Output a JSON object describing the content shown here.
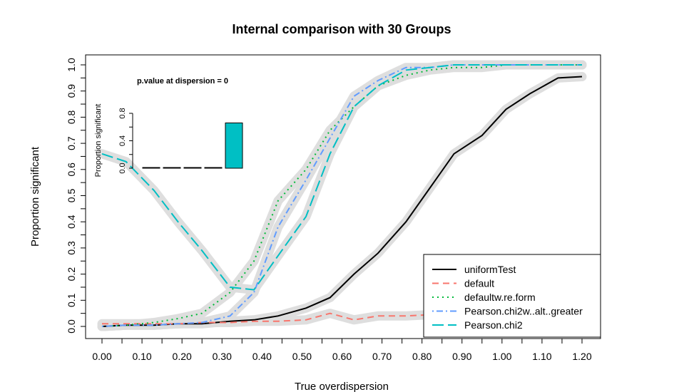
{
  "chart_data": {
    "type": "line",
    "title": "Internal comparison with 30 Groups",
    "xlabel": "True overdispersion",
    "ylabel": "Proportion significant",
    "xlim": [
      -0.03,
      1.23
    ],
    "ylim": [
      -0.04,
      1.04
    ],
    "x_ticks": [
      0.0,
      0.1,
      0.2,
      0.3,
      0.4,
      0.5,
      0.6,
      0.7,
      0.8,
      0.9,
      1.0,
      1.1,
      1.2
    ],
    "x_tick_labels": [
      "0.00",
      "0.10",
      "0.20",
      "0.30",
      "0.40",
      "0.50",
      "0.60",
      "0.70",
      "0.80",
      "0.90",
      "1.00",
      "1.10",
      "1.20"
    ],
    "y_ticks": [
      0.0,
      0.1,
      0.2,
      0.3,
      0.4,
      0.5,
      0.6,
      0.7,
      0.8,
      0.9,
      1.0
    ],
    "y_tick_labels": [
      "0.0",
      "0.1",
      "0.2",
      "0.3",
      "0.4",
      "0.5",
      "0.6",
      "0.7",
      "0.8",
      "0.9",
      "1.0"
    ],
    "grid": false,
    "legend_position": "bottom-right",
    "series": [
      {
        "name": "uniformTest",
        "color": "#000000",
        "dash": "solid",
        "x": [
          0.0,
          0.06,
          0.13,
          0.19,
          0.25,
          0.32,
          0.38,
          0.44,
          0.51,
          0.57,
          0.63,
          0.69,
          0.76,
          0.82,
          0.88,
          0.95,
          1.01,
          1.07,
          1.14,
          1.2
        ],
        "y": [
          0.0,
          0.005,
          0.005,
          0.01,
          0.01,
          0.02,
          0.025,
          0.04,
          0.07,
          0.11,
          0.2,
          0.28,
          0.4,
          0.53,
          0.66,
          0.73,
          0.83,
          0.89,
          0.95,
          0.955
        ]
      },
      {
        "name": "default",
        "color": "#f8766d",
        "dash": "dashed",
        "x": [
          0.0,
          0.06,
          0.13,
          0.19,
          0.25,
          0.32,
          0.38,
          0.44,
          0.51,
          0.57,
          0.63,
          0.69,
          0.76,
          0.82,
          0.88,
          0.95,
          1.01,
          1.07,
          1.14,
          1.2
        ],
        "y": [
          0.01,
          0.01,
          0.01,
          0.01,
          0.015,
          0.015,
          0.02,
          0.02,
          0.025,
          0.05,
          0.025,
          0.04,
          0.04,
          0.045,
          0.045,
          0.05,
          0.05,
          0.05,
          0.05,
          0.05
        ]
      },
      {
        "name": "defaultw.re.form",
        "color": "#00ba38",
        "dash": "dotted",
        "x": [
          0.0,
          0.06,
          0.13,
          0.19,
          0.25,
          0.32,
          0.38,
          0.44,
          0.51,
          0.57,
          0.63,
          0.69,
          0.76,
          0.82,
          0.88,
          0.95,
          1.01,
          1.07,
          1.14,
          1.2
        ],
        "y": [
          0.0,
          0.005,
          0.015,
          0.03,
          0.05,
          0.13,
          0.25,
          0.48,
          0.6,
          0.75,
          0.84,
          0.92,
          0.96,
          0.98,
          0.99,
          0.99,
          1.0,
          1.0,
          1.0,
          1.0
        ]
      },
      {
        "name": "Pearson.chi2w..alt..greater",
        "color": "#619cff",
        "dash": "dashdot",
        "x": [
          0.0,
          0.06,
          0.13,
          0.19,
          0.25,
          0.32,
          0.38,
          0.44,
          0.51,
          0.57,
          0.63,
          0.69,
          0.76,
          0.82,
          0.88,
          0.95,
          1.01,
          1.07,
          1.14,
          1.2
        ],
        "y": [
          0.0,
          0.005,
          0.005,
          0.01,
          0.015,
          0.04,
          0.13,
          0.38,
          0.56,
          0.72,
          0.88,
          0.94,
          0.99,
          0.99,
          1.0,
          1.0,
          1.0,
          1.0,
          1.0,
          1.0
        ]
      },
      {
        "name": "Pearson.chi2",
        "color": "#00bfc4",
        "dash": "longdash",
        "x": [
          0.0,
          0.06,
          0.13,
          0.19,
          0.25,
          0.32,
          0.38,
          0.44,
          0.51,
          0.57,
          0.63,
          0.69,
          0.76,
          0.82,
          0.88,
          0.95,
          1.01,
          1.07,
          1.14,
          1.2
        ],
        "y": [
          0.66,
          0.63,
          0.52,
          0.4,
          0.29,
          0.15,
          0.14,
          0.27,
          0.42,
          0.66,
          0.84,
          0.92,
          0.98,
          0.99,
          1.0,
          1.0,
          1.0,
          1.0,
          1.0,
          1.0
        ]
      }
    ],
    "inset": {
      "type": "bar",
      "title": "p.value at dispersion = 0",
      "ylabel": "Proportion significant",
      "ylim": [
        0,
        0.8
      ],
      "y_ticks": [
        0.0,
        0.4,
        0.8
      ],
      "y_tick_labels": [
        "0.0",
        "0.4",
        "0.8"
      ],
      "values": [
        0.0,
        0.01,
        0.0,
        0.0,
        0.66
      ],
      "colors": [
        "#000000",
        "#000000",
        "#000000",
        "#000000",
        "#00bfc4"
      ]
    }
  }
}
